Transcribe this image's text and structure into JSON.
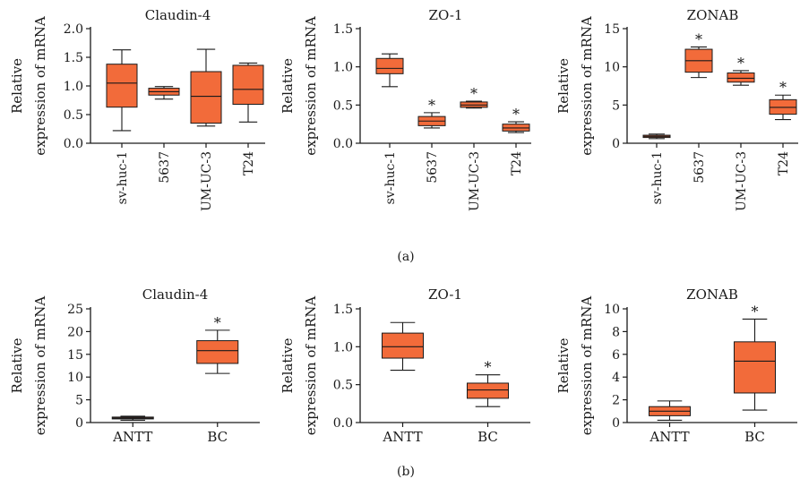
{
  "figure": {
    "panel_labels": [
      "(a)",
      "(b)"
    ]
  },
  "style": {
    "box_fill": "#f26b3a",
    "box_stroke": "#1a1a1a",
    "axis_color": "#1a1a1a",
    "background": "#ffffff"
  },
  "chart_data": [
    {
      "type": "boxplot",
      "panel": "(a)",
      "title": "Claudin-4",
      "ylabel": "Relative expression of mRNA",
      "ylim": [
        0,
        2.0
      ],
      "yticks": [
        0.0,
        0.5,
        1.0,
        1.5,
        2.0
      ],
      "tick_decimals": 1,
      "categories": [
        "sv-huc-1",
        "5637",
        "UM-UC-3",
        "T24"
      ],
      "xlabels_rotated": true,
      "boxes": [
        {
          "min": 0.22,
          "q1": 0.63,
          "median": 1.05,
          "q3": 1.38,
          "max": 1.63,
          "star": false
        },
        {
          "min": 0.77,
          "q1": 0.84,
          "median": 0.9,
          "q3": 0.96,
          "max": 0.99,
          "star": false
        },
        {
          "min": 0.3,
          "q1": 0.35,
          "median": 0.82,
          "q3": 1.25,
          "max": 1.64,
          "star": false
        },
        {
          "min": 0.37,
          "q1": 0.68,
          "median": 0.94,
          "q3": 1.36,
          "max": 1.4,
          "star": false
        }
      ]
    },
    {
      "type": "boxplot",
      "panel": "(a)",
      "title": "ZO-1",
      "ylabel": "Relative expression of mRNA",
      "ylim": [
        0,
        1.5
      ],
      "yticks": [
        0.0,
        0.5,
        1.0,
        1.5
      ],
      "tick_decimals": 1,
      "categories": [
        "sv-huc-1",
        "5637",
        "UM-UC-3",
        "T24"
      ],
      "xlabels_rotated": true,
      "boxes": [
        {
          "min": 0.74,
          "q1": 0.91,
          "median": 0.98,
          "q3": 1.11,
          "max": 1.17,
          "star": false
        },
        {
          "min": 0.2,
          "q1": 0.23,
          "median": 0.29,
          "q3": 0.35,
          "max": 0.4,
          "star": true
        },
        {
          "min": 0.46,
          "q1": 0.47,
          "median": 0.5,
          "q3": 0.54,
          "max": 0.55,
          "star": true
        },
        {
          "min": 0.14,
          "q1": 0.16,
          "median": 0.2,
          "q3": 0.25,
          "max": 0.28,
          "star": true
        }
      ]
    },
    {
      "type": "boxplot",
      "panel": "(a)",
      "title": "ZONAB",
      "ylabel": "Relative expression of mRNA",
      "ylim": [
        0,
        15
      ],
      "yticks": [
        0,
        5,
        10,
        15
      ],
      "tick_decimals": 0,
      "categories": [
        "sv-huc-1",
        "5637",
        "UM-UC-3",
        "T24"
      ],
      "xlabels_rotated": true,
      "boxes": [
        {
          "min": 0.6,
          "q1": 0.75,
          "median": 0.9,
          "q3": 1.05,
          "max": 1.2,
          "star": false
        },
        {
          "min": 8.6,
          "q1": 9.3,
          "median": 10.8,
          "q3": 12.3,
          "max": 12.6,
          "star": true
        },
        {
          "min": 7.6,
          "q1": 8.0,
          "median": 8.5,
          "q3": 9.2,
          "max": 9.5,
          "star": true
        },
        {
          "min": 3.1,
          "q1": 3.8,
          "median": 4.7,
          "q3": 5.7,
          "max": 6.3,
          "star": true
        }
      ]
    },
    {
      "type": "boxplot",
      "panel": "(b)",
      "title": "Claudin-4",
      "ylabel": "Relative expression of mRNA",
      "ylim": [
        0,
        25
      ],
      "yticks": [
        0,
        5,
        10,
        15,
        20,
        25
      ],
      "tick_decimals": 0,
      "categories": [
        "ANTT",
        "BC"
      ],
      "xlabels_rotated": false,
      "boxes": [
        {
          "min": 0.5,
          "q1": 0.8,
          "median": 1.0,
          "q3": 1.2,
          "max": 1.4,
          "star": false
        },
        {
          "min": 10.8,
          "q1": 13.0,
          "median": 15.8,
          "q3": 18.0,
          "max": 20.3,
          "star": true
        }
      ]
    },
    {
      "type": "boxplot",
      "panel": "(b)",
      "title": "ZO-1",
      "ylabel": "Relative expression of mRNA",
      "ylim": [
        0,
        1.5
      ],
      "yticks": [
        0.0,
        0.5,
        1.0,
        1.5
      ],
      "tick_decimals": 1,
      "categories": [
        "ANTT",
        "BC"
      ],
      "xlabels_rotated": false,
      "boxes": [
        {
          "min": 0.69,
          "q1": 0.85,
          "median": 1.0,
          "q3": 1.18,
          "max": 1.32,
          "star": false
        },
        {
          "min": 0.21,
          "q1": 0.32,
          "median": 0.43,
          "q3": 0.52,
          "max": 0.63,
          "star": true
        }
      ]
    },
    {
      "type": "boxplot",
      "panel": "(b)",
      "title": "ZONAB",
      "ylabel": "Relative expression of mRNA",
      "ylim": [
        0,
        10
      ],
      "yticks": [
        0,
        2,
        4,
        6,
        8,
        10
      ],
      "tick_decimals": 0,
      "categories": [
        "ANTT",
        "BC"
      ],
      "xlabels_rotated": false,
      "boxes": [
        {
          "min": 0.2,
          "q1": 0.6,
          "median": 1.0,
          "q3": 1.4,
          "max": 1.9,
          "star": false
        },
        {
          "min": 1.1,
          "q1": 2.6,
          "median": 5.4,
          "q3": 7.1,
          "max": 9.1,
          "star": true
        }
      ]
    }
  ]
}
